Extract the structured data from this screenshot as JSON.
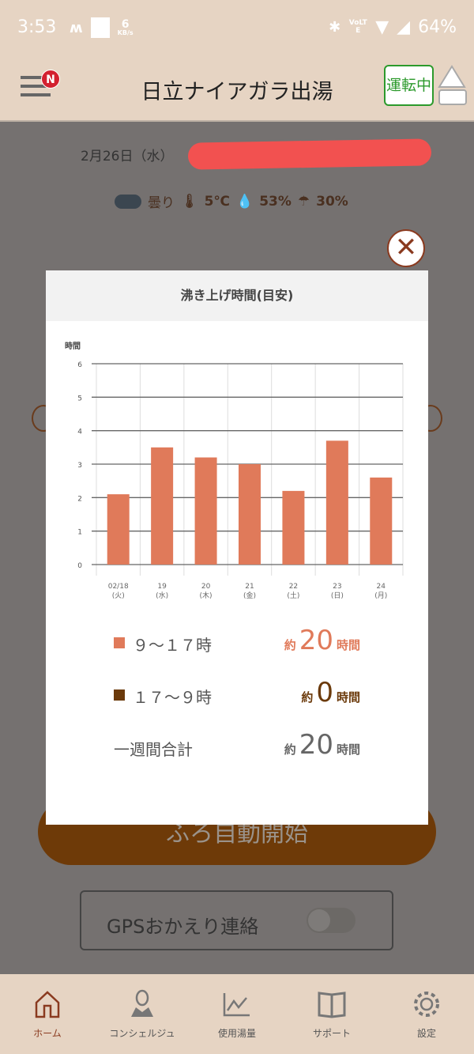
{
  "status_bar": {
    "time": "3:53",
    "speed_value": "6",
    "speed_unit": "KB/s",
    "network": "VoLTE",
    "battery": "64%"
  },
  "header": {
    "title": "日立ナイアガラ出湯",
    "badge": "N",
    "running_label": "運転中"
  },
  "home": {
    "date": "2月26日（水）",
    "weather": "曇り",
    "temperature": "5℃",
    "humidity": "53%",
    "rain_chance": "30%",
    "bath_button": "ふろ自動開始",
    "gps_label": "GPSおかえり連絡",
    "gps_enabled": false
  },
  "modal": {
    "title": "沸き上げ時間(目安)",
    "close_icon": "close-icon",
    "summary": [
      {
        "label": "９～１７時",
        "prefix": "約",
        "value": "20",
        "suffix": "時間",
        "color": "#e07a5a"
      },
      {
        "label": "１７～９時",
        "prefix": "約",
        "value": "0",
        "suffix": "時間",
        "color": "#6b3a0b"
      },
      {
        "label": "一週間合計",
        "prefix": "約",
        "value": "20",
        "suffix": "時間",
        "color": "#666666"
      }
    ]
  },
  "chart_data": {
    "type": "bar",
    "ylabel": "時間",
    "ylim": [
      0,
      6
    ],
    "yticks": [
      "0",
      "1",
      "2",
      "3",
      "4",
      "5",
      "6"
    ],
    "categories": [
      [
        "02/18",
        "(火)"
      ],
      [
        "19",
        "(水)"
      ],
      [
        "20",
        "(木)"
      ],
      [
        "21",
        "(金)"
      ],
      [
        "22",
        "(土)"
      ],
      [
        "23",
        "(日)"
      ],
      [
        "24",
        "(月)"
      ]
    ],
    "values": [
      2.1,
      3.5,
      3.2,
      3.0,
      2.2,
      3.7,
      2.6
    ],
    "bar_color": "#e07a5a",
    "grid": true
  },
  "nav": [
    {
      "label": "ホーム",
      "icon": "home-icon",
      "active": true
    },
    {
      "label": "コンシェルジュ",
      "icon": "concierge-icon"
    },
    {
      "label": "使用湯量",
      "icon": "chart-icon"
    },
    {
      "label": "サポート",
      "icon": "book-icon"
    },
    {
      "label": "設定",
      "icon": "gear-icon"
    }
  ]
}
